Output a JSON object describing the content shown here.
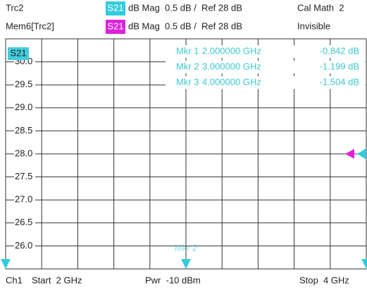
{
  "header": {
    "rows": [
      {
        "trace": "Trc2",
        "param": "S21",
        "format": "dB Mag  0.5 dB /  Ref 28 dB",
        "status": "Cal Math  2"
      },
      {
        "trace": "Mem6[Trc2]",
        "param": "S21",
        "format": "dB Mag  0.5 dB /  Ref 28 dB",
        "status": "Invisible"
      }
    ]
  },
  "chart_data": {
    "type": "marker-display",
    "label": "S21",
    "ylim": [
      25.5,
      30.5
    ],
    "yticks": [
      {
        "value": 30,
        "label": "30.0"
      },
      29.5,
      {
        "value": 29,
        "label": "29.0"
      },
      28.5,
      {
        "value": 28,
        "label": "28.0"
      },
      27.5,
      {
        "value": 27,
        "label": "27.0"
      },
      26.5,
      {
        "value": 26,
        "label": "26.0"
      }
    ],
    "xlim": [
      2,
      4
    ],
    "grid": true,
    "markers": [
      {
        "name": "Mkr 1",
        "x": 2,
        "x_label": "2.000000 GHz",
        "value_label": "-0.842 dB"
      },
      {
        "name": "Mkr 2",
        "x": 3,
        "x_label": "3.000000 GHz",
        "value_label": "-1.199 dB"
      },
      {
        "name": "Mkr 3",
        "x": 4,
        "x_label": "4.000000 GHz",
        "value_label": "-1.504 dB"
      }
    ]
  },
  "footer": {
    "channel": "Ch1",
    "start": "Start  2 GHz",
    "power": "Pwr  -10 dBm",
    "stop": "Stop  4 GHz"
  }
}
